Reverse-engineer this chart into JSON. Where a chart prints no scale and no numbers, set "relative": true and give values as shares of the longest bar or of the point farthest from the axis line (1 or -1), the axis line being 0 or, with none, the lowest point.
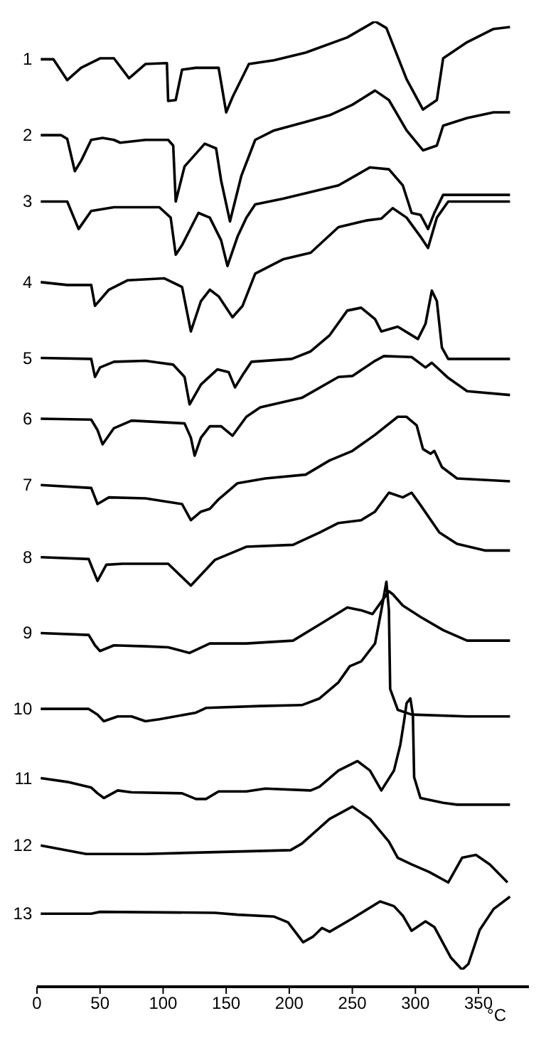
{
  "chart_data": {
    "type": "line",
    "relative": true,
    "xlabel": "°C",
    "xlim": [
      0,
      390
    ],
    "xticks": [
      0,
      50,
      100,
      150,
      200,
      250,
      300,
      350
    ],
    "series": [
      {
        "name": "1",
        "color": "#000000",
        "x": [
          3,
          13,
          24,
          35,
          50,
          61,
          73,
          86,
          103,
          104,
          110,
          115,
          126,
          144,
          150,
          155,
          168,
          188,
          213,
          246,
          268,
          277,
          293,
          306,
          317,
          322,
          341,
          362,
          375
        ],
        "values": [
          0.96,
          0.96,
          0.938,
          0.951,
          0.961,
          0.961,
          0.94,
          0.955,
          0.956,
          0.916,
          0.917,
          0.949,
          0.951,
          0.951,
          0.904,
          0.92,
          0.955,
          0.959,
          0.967,
          0.983,
          1.0,
          0.993,
          0.939,
          0.907,
          0.917,
          0.961,
          0.978,
          0.992,
          0.994
        ]
      },
      {
        "name": "2",
        "color": "#000000",
        "x": [
          3,
          19,
          24,
          30,
          35,
          43,
          52,
          61,
          66,
          86,
          104,
          108,
          110,
          117,
          133,
          142,
          146,
          153,
          162,
          173,
          188,
          213,
          232,
          250,
          268,
          279,
          293,
          306,
          317,
          322,
          341,
          362,
          375
        ],
        "values": [
          0.88,
          0.88,
          0.876,
          0.842,
          0.853,
          0.875,
          0.877,
          0.875,
          0.872,
          0.875,
          0.875,
          0.869,
          0.81,
          0.847,
          0.871,
          0.866,
          0.832,
          0.789,
          0.837,
          0.875,
          0.885,
          0.894,
          0.901,
          0.912,
          0.927,
          0.917,
          0.885,
          0.864,
          0.869,
          0.89,
          0.898,
          0.904,
          0.904
        ]
      },
      {
        "name": "3",
        "color": "#000000",
        "x": [
          3,
          24,
          33,
          43,
          61,
          97,
          106,
          110,
          115,
          128,
          137,
          146,
          151,
          159,
          166,
          173,
          195,
          239,
          264,
          279,
          290,
          297,
          304,
          310,
          315,
          322,
          375
        ],
        "values": [
          0.81,
          0.81,
          0.781,
          0.8,
          0.804,
          0.804,
          0.793,
          0.754,
          0.764,
          0.798,
          0.793,
          0.769,
          0.742,
          0.773,
          0.793,
          0.807,
          0.813,
          0.827,
          0.846,
          0.844,
          0.827,
          0.798,
          0.796,
          0.781,
          0.798,
          0.817,
          0.817
        ]
      },
      {
        "name": "4",
        "color": "#000000",
        "x": [
          3,
          24,
          43,
          46,
          57,
          72,
          101,
          115,
          122,
          130,
          137,
          144,
          155,
          163,
          173,
          195,
          217,
          239,
          261,
          273,
          282,
          293,
          304,
          310,
          317,
          326,
          375
        ],
        "values": [
          0.725,
          0.722,
          0.722,
          0.7,
          0.717,
          0.727,
          0.729,
          0.72,
          0.673,
          0.705,
          0.717,
          0.71,
          0.688,
          0.7,
          0.734,
          0.749,
          0.756,
          0.783,
          0.79,
          0.792,
          0.803,
          0.793,
          0.773,
          0.761,
          0.793,
          0.81,
          0.81
        ]
      },
      {
        "name": "5",
        "color": "#000000",
        "x": [
          3,
          43,
          46,
          50,
          61,
          86,
          108,
          117,
          121,
          130,
          143,
          152,
          157,
          163,
          170,
          202,
          217,
          232,
          246,
          257,
          268,
          273,
          286,
          302,
          308,
          313,
          317,
          321,
          326,
          375
        ],
        "values": [
          0.645,
          0.644,
          0.625,
          0.635,
          0.641,
          0.642,
          0.638,
          0.625,
          0.596,
          0.617,
          0.633,
          0.63,
          0.614,
          0.627,
          0.641,
          0.644,
          0.652,
          0.669,
          0.695,
          0.698,
          0.686,
          0.673,
          0.678,
          0.665,
          0.681,
          0.716,
          0.705,
          0.656,
          0.644,
          0.644
        ]
      },
      {
        "name": "6",
        "color": "#000000",
        "x": [
          3,
          43,
          48,
          52,
          61,
          75,
          117,
          122,
          125,
          130,
          137,
          146,
          155,
          166,
          177,
          210,
          239,
          250,
          268,
          275,
          297,
          308,
          313,
          326,
          341,
          375
        ],
        "values": [
          0.581,
          0.58,
          0.569,
          0.554,
          0.571,
          0.579,
          0.576,
          0.561,
          0.542,
          0.561,
          0.573,
          0.573,
          0.563,
          0.583,
          0.593,
          0.603,
          0.625,
          0.626,
          0.642,
          0.647,
          0.646,
          0.635,
          0.64,
          0.624,
          0.61,
          0.606
        ]
      },
      {
        "name": "7",
        "color": "#000000",
        "x": [
          3,
          43,
          48,
          57,
          86,
          115,
          122,
          130,
          137,
          144,
          159,
          181,
          213,
          232,
          250,
          268,
          286,
          293,
          301,
          306,
          312,
          315,
          321,
          333,
          375
        ],
        "values": [
          0.511,
          0.508,
          0.491,
          0.498,
          0.497,
          0.491,
          0.474,
          0.483,
          0.486,
          0.496,
          0.513,
          0.518,
          0.522,
          0.537,
          0.547,
          0.564,
          0.583,
          0.583,
          0.574,
          0.549,
          0.544,
          0.547,
          0.53,
          0.518,
          0.515
        ]
      },
      {
        "name": "8",
        "color": "#000000",
        "x": [
          3,
          41,
          44,
          48,
          55,
          68,
          104,
          122,
          141,
          166,
          203,
          224,
          239,
          257,
          268,
          279,
          290,
          297,
          304,
          319,
          333,
          355,
          375
        ],
        "values": [
          0.435,
          0.433,
          0.423,
          0.41,
          0.427,
          0.428,
          0.428,
          0.405,
          0.432,
          0.446,
          0.448,
          0.461,
          0.471,
          0.474,
          0.483,
          0.503,
          0.498,
          0.503,
          0.49,
          0.461,
          0.449,
          0.442,
          0.442
        ]
      },
      {
        "name": "9",
        "color": "#000000",
        "x": [
          3,
          41,
          46,
          50,
          61,
          86,
          104,
          121,
          137,
          166,
          203,
          224,
          246,
          257,
          266,
          273,
          279,
          282,
          290,
          304,
          322,
          341,
          375
        ],
        "values": [
          0.355,
          0.353,
          0.342,
          0.336,
          0.342,
          0.341,
          0.34,
          0.334,
          0.344,
          0.344,
          0.347,
          0.364,
          0.382,
          0.379,
          0.375,
          0.388,
          0.399,
          0.396,
          0.384,
          0.372,
          0.358,
          0.347,
          0.347
        ]
      },
      {
        "name": "10",
        "color": "#000000",
        "x": [
          3,
          41,
          48,
          53,
          64,
          75,
          86,
          97,
          126,
          134,
          177,
          210,
          224,
          239,
          248,
          257,
          268,
          273,
          277,
          279,
          280,
          286,
          297,
          341,
          375
        ],
        "values": [
          0.275,
          0.275,
          0.269,
          0.262,
          0.267,
          0.267,
          0.262,
          0.264,
          0.271,
          0.276,
          0.278,
          0.279,
          0.286,
          0.303,
          0.32,
          0.325,
          0.344,
          0.379,
          0.409,
          0.379,
          0.296,
          0.274,
          0.269,
          0.267,
          0.267
        ]
      },
      {
        "name": "11",
        "color": "#000000",
        "x": [
          3,
          24,
          43,
          48,
          53,
          64,
          75,
          115,
          126,
          134,
          144,
          166,
          181,
          217,
          224,
          239,
          254,
          264,
          273,
          283,
          288,
          291,
          293,
          296,
          298,
          299,
          304,
          322,
          333,
          375
        ],
        "values": [
          0.202,
          0.198,
          0.192,
          0.186,
          0.181,
          0.189,
          0.187,
          0.186,
          0.18,
          0.18,
          0.188,
          0.188,
          0.191,
          0.189,
          0.193,
          0.21,
          0.22,
          0.21,
          0.189,
          0.21,
          0.237,
          0.262,
          0.281,
          0.286,
          0.269,
          0.203,
          0.181,
          0.176,
          0.174,
          0.174
        ]
      },
      {
        "name": "12",
        "color": "#000000",
        "x": [
          3,
          39,
          86,
          141,
          201,
          210,
          232,
          250,
          264,
          279,
          286,
          297,
          311,
          326,
          337,
          348,
          359,
          373
        ],
        "values": [
          0.131,
          0.122,
          0.122,
          0.124,
          0.126,
          0.133,
          0.159,
          0.172,
          0.159,
          0.135,
          0.118,
          0.111,
          0.103,
          0.092,
          0.118,
          0.121,
          0.111,
          0.092
        ]
      },
      {
        "name": "13",
        "color": "#000000",
        "x": [
          3,
          43,
          50,
          141,
          159,
          188,
          199,
          211,
          219,
          226,
          232,
          250,
          272,
          283,
          290,
          297,
          308,
          315,
          328,
          337,
          342,
          351,
          362,
          375
        ],
        "values": [
          0.059,
          0.059,
          0.061,
          0.06,
          0.058,
          0.056,
          0.05,
          0.029,
          0.035,
          0.044,
          0.04,
          0.054,
          0.072,
          0.067,
          0.057,
          0.041,
          0.051,
          0.045,
          0.013,
          0.0,
          0.006,
          0.042,
          0.064,
          0.077
        ]
      }
    ]
  }
}
